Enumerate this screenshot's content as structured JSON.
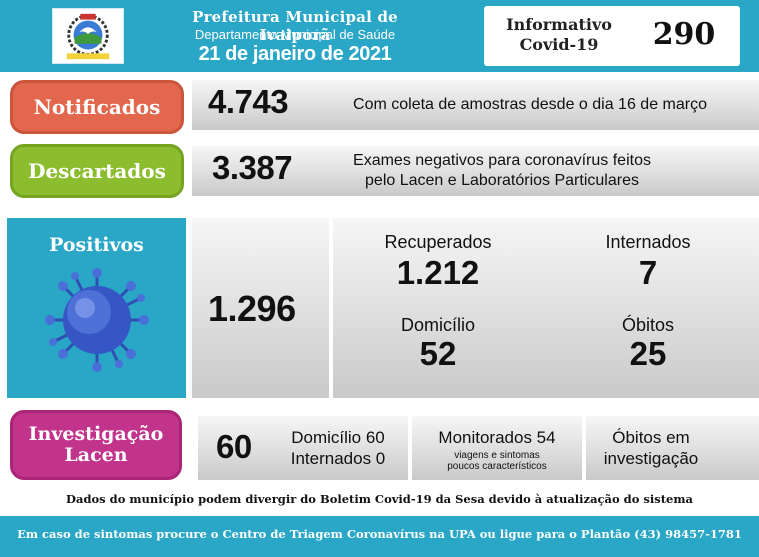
{
  "header": {
    "title": "Prefeitura Municipal de Ivaiporã",
    "department": "Departamento Municipal de Saúde",
    "date": "21 de janeiro de 2021",
    "bulletin_label": "Informativo\nCovid-19",
    "bulletin_number": "290"
  },
  "notificados": {
    "label": "Notificados",
    "value": "4.743",
    "description": "Com coleta de amostras desde o dia 16 de março"
  },
  "descartados": {
    "label": "Descartados",
    "value": "3.387",
    "description_line1": "Exames negativos para coronavírus feitos",
    "description_line2": "pelo Lacen e Laboratórios Particulares"
  },
  "positivos": {
    "label": "Positivos",
    "value": "1.296",
    "recuperados_label": "Recuperados",
    "recuperados_value": "1.212",
    "internados_label": "Internados",
    "internados_value": "7",
    "domicilio_label": "Domicílio",
    "domicilio_value": "52",
    "obitos_label": "Óbitos",
    "obitos_value": "25"
  },
  "investigacao": {
    "label_line1": "Investigação",
    "label_line2": "Lacen",
    "value": "60",
    "domicilio": "Domicílio 60",
    "internados": "Internados 0",
    "monitorados": "Monitorados 54",
    "monitorados_note_line1": "viagens e sintomas",
    "monitorados_note_line2": "poucos característicos",
    "obitos_line1": "Óbitos em",
    "obitos_line2": "investigação"
  },
  "footnote": "Dados do município podem divergir do Boletim Covid-19 da Sesa devido à atualização do sistema",
  "footer": "Em caso de sintomas procure o Centro de Triagem Coronavírus na UPA ou ligue para o Plantão (43) 98457-1781",
  "colors": {
    "header_teal": "#2aa6c6",
    "notificados": "#e2674c",
    "descartados": "#8cbd2f",
    "investigacao": "#c2338c"
  }
}
